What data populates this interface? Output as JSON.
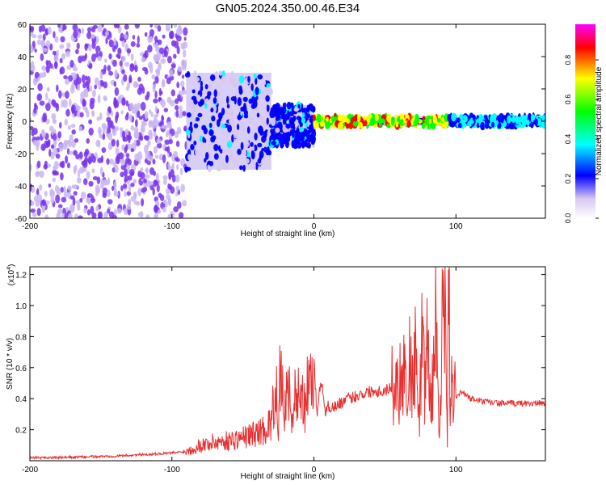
{
  "title": "GN05.2024.350.00.46.E34",
  "chart_data": [
    {
      "type": "heatmap",
      "xlabel": "Height of straight line (km)",
      "ylabel": "Frequency (Hz)",
      "xlim": [
        -200,
        163
      ],
      "ylim": [
        -60,
        60
      ],
      "xticks": [
        -200,
        -100,
        0,
        100
      ],
      "yticks": [
        -60,
        -40,
        -20,
        0,
        20,
        40,
        60
      ],
      "colorbar": {
        "label": "Normalized spectral amplitude",
        "range": [
          0,
          0.98
        ],
        "ticks": [
          0.0,
          0.2,
          0.4,
          0.6,
          0.8
        ],
        "tick_labels": [
          "0.0",
          "0.2",
          "0.4",
          "0.6",
          "0.8"
        ],
        "colormap": [
          "#ff00ff",
          "#ff0000",
          "#ffff00",
          "#00ff00",
          "#00ffff",
          "#0000ff",
          "#d8c8f0",
          "#ffffff"
        ]
      },
      "regions": [
        {
          "x": [
            -200,
            -90
          ],
          "freq_band": [
            -60,
            60
          ],
          "level": "scattered 0.0-0.2"
        },
        {
          "x": [
            -90,
            -30
          ],
          "freq_band": [
            -30,
            30
          ],
          "level": "0.1-0.4"
        },
        {
          "x": [
            -30,
            0
          ],
          "freq_band": [
            -15,
            10
          ],
          "level": "0.2-0.4"
        },
        {
          "x": [
            0,
            95
          ],
          "freq_band": [
            -3,
            3
          ],
          "level": "0.6-0.95"
        },
        {
          "x": [
            95,
            163
          ],
          "freq_band": [
            -3,
            3
          ],
          "level": "0.3-0.5"
        }
      ]
    },
    {
      "type": "line",
      "ylabel": "SNR (10 * v/v)",
      "xlabel": "Height of straight line (km)",
      "y_multiplier_label": "(x10",
      "y_multiplier_exp": "4",
      "xlim": [
        -200,
        163
      ],
      "ylim": [
        0,
        1.25
      ],
      "xticks": [
        -200,
        -100,
        0,
        100
      ],
      "yticks": [
        0.2,
        0.4,
        0.6,
        0.8,
        1.0,
        1.2
      ],
      "ytick_labels": [
        "0.2",
        "0.4",
        "0.6",
        "0.8",
        "1.0",
        "1.2"
      ],
      "color": "#e83030",
      "series": [
        {
          "x": [
            -200,
            -180,
            -160,
            -140,
            -120,
            -100,
            -90,
            -80,
            -70,
            -60,
            -50,
            -40,
            -35,
            -30,
            -28,
            -26,
            -25,
            -24,
            -22,
            -20,
            -18,
            -16,
            -14,
            -12,
            -10,
            -8,
            -6,
            -4,
            -2,
            0,
            2,
            4,
            6,
            8,
            10,
            15,
            20,
            30,
            40,
            50,
            55,
            60,
            62,
            64,
            66,
            68,
            70,
            72,
            74,
            76,
            78,
            80,
            82,
            84,
            86,
            88,
            90,
            92,
            94,
            95,
            96,
            97,
            98,
            100,
            102,
            105,
            110,
            120,
            130,
            140,
            150,
            163
          ],
          "y": [
            0.02,
            0.02,
            0.025,
            0.03,
            0.04,
            0.05,
            0.06,
            0.1,
            0.12,
            0.13,
            0.15,
            0.18,
            0.2,
            0.25,
            0.4,
            0.55,
            0.12,
            0.5,
            0.45,
            0.3,
            0.55,
            0.2,
            0.45,
            0.35,
            0.5,
            0.4,
            0.3,
            0.55,
            0.45,
            0.68,
            0.3,
            0.45,
            0.5,
            0.3,
            0.35,
            0.35,
            0.38,
            0.42,
            0.45,
            0.45,
            0.48,
            0.5,
            0.58,
            0.65,
            0.3,
            0.78,
            0.4,
            0.82,
            0.25,
            0.72,
            0.5,
            0.85,
            0.3,
            0.6,
            0.9,
            0.2,
            0.8,
            0.95,
            0.15,
            1.25,
            0.25,
            0.9,
            0.4,
            0.42,
            0.43,
            0.44,
            0.4,
            0.38,
            0.37,
            0.37,
            0.37,
            0.37
          ]
        }
      ]
    }
  ]
}
